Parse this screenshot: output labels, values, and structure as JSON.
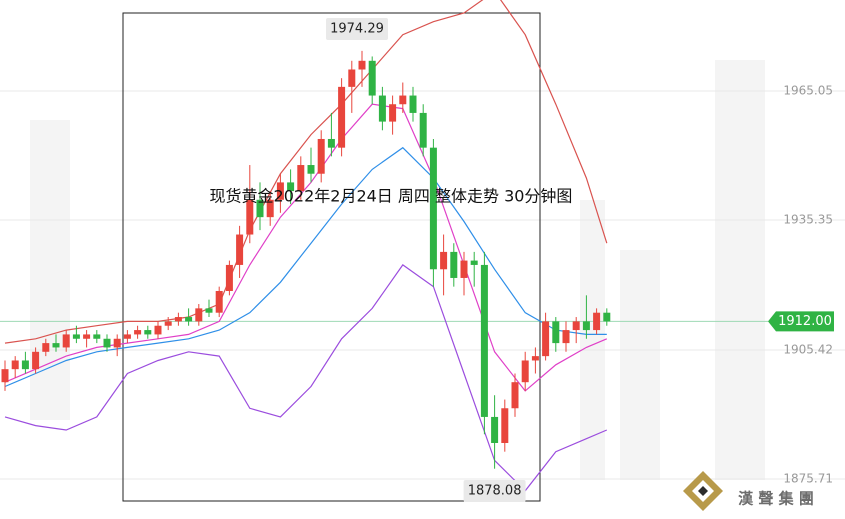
{
  "chart_data": {
    "type": "candlestick",
    "title": "现货黄金2022年2月24日 周四  整体走势 30分钟图",
    "ylim": [
      1866.5,
      1986.0
    ],
    "yticks": [
      1965.05,
      1935.35,
      1905.42,
      1875.71
    ],
    "grid": true,
    "up_color": "#e8453c",
    "down_color": "#2fb344",
    "last_price": {
      "value": 1912,
      "label": "1912.00"
    },
    "high_label": 1974.29,
    "low_label": 1878.08,
    "open": [
      1898,
      1901,
      1903,
      1901,
      1905,
      1907,
      1906,
      1909,
      1908,
      1909,
      1908,
      1906,
      1908,
      1909,
      1910,
      1909,
      1911,
      1912,
      1913,
      1912,
      1915,
      1914,
      1919,
      1925,
      1932,
      1940,
      1936,
      1940,
      1944,
      1942,
      1948,
      1946,
      1954,
      1952,
      1966,
      1970,
      1972,
      1964,
      1958,
      1962,
      1964,
      1960,
      1952,
      1924,
      1928,
      1922,
      1926,
      1925,
      1890,
      1884,
      1892,
      1898,
      1903,
      1904,
      1912,
      1907,
      1910,
      1912,
      1910,
      1914
    ],
    "high": [
      1903,
      1904,
      1905,
      1906,
      1908,
      1909,
      1910,
      1911,
      1910,
      1910,
      1909,
      1909,
      1910,
      1911,
      1911,
      1912,
      1913,
      1914,
      1915,
      1916,
      1917,
      1920,
      1926,
      1934,
      1948,
      1944,
      1942,
      1946,
      1947,
      1950,
      1952,
      1956,
      1960,
      1968,
      1972,
      1974.29,
      1973,
      1966,
      1964,
      1967,
      1966,
      1962,
      1954,
      1932,
      1930,
      1928,
      1928,
      1928,
      1895,
      1894,
      1900,
      1905,
      1906,
      1914,
      1913,
      1912,
      1913,
      1918,
      1915,
      1915
    ],
    "low": [
      1896,
      1899,
      1900,
      1900,
      1904,
      1905,
      1905,
      1907,
      1906,
      1907,
      1905,
      1904,
      1907,
      1908,
      1908,
      1908,
      1910,
      1911,
      1911,
      1911,
      1913,
      1913,
      1918,
      1922,
      1930,
      1933,
      1934,
      1937,
      1939,
      1940,
      1944,
      1944,
      1950,
      1950,
      1960,
      1966,
      1962,
      1956,
      1955,
      1960,
      1958,
      1950,
      1920,
      1918,
      1920,
      1918,
      1920,
      1886,
      1878.08,
      1882,
      1890,
      1896,
      1900,
      1903,
      1905,
      1905,
      1907,
      1908,
      1909,
      1911
    ],
    "close": [
      1901,
      1903,
      1901,
      1905,
      1907,
      1906,
      1909,
      1908,
      1909,
      1908,
      1906,
      1908,
      1909,
      1910,
      1909,
      1911,
      1912,
      1913,
      1912,
      1915,
      1914,
      1919,
      1925,
      1932,
      1940,
      1936,
      1940,
      1944,
      1942,
      1948,
      1946,
      1954,
      1952,
      1966,
      1970,
      1972,
      1964,
      1958,
      1962,
      1964,
      1960,
      1952,
      1924,
      1928,
      1922,
      1926,
      1925,
      1890,
      1884,
      1892,
      1898,
      1903,
      1904,
      1912,
      1907,
      1910,
      1912,
      1910,
      1914,
      1912
    ],
    "series": [
      {
        "color": "#d9534f",
        "x": [
          0,
          3,
          6,
          9,
          12,
          15,
          18,
          21,
          24,
          27,
          30,
          33,
          36,
          39,
          42,
          45,
          48,
          51,
          54,
          57,
          59
        ],
        "values": [
          1907,
          1908,
          1910,
          1911,
          1912,
          1912,
          1913,
          1916,
          1933,
          1946,
          1955,
          1962,
          1970,
          1978,
          1981,
          1983,
          1988,
          1978,
          1962,
          1945,
          1930
        ]
      },
      {
        "color": "#e040c8",
        "x": [
          0,
          3,
          6,
          9,
          12,
          15,
          18,
          21,
          24,
          27,
          30,
          33,
          36,
          39,
          42,
          45,
          48,
          51,
          54,
          57,
          59
        ],
        "values": [
          1898,
          1901,
          1904,
          1906,
          1907,
          1908,
          1909,
          1912,
          1925,
          1936,
          1944,
          1954,
          1962,
          1961,
          1945,
          1925,
          1905,
          1896,
          1902,
          1906,
          1908
        ]
      },
      {
        "color": "#2f8fe8",
        "x": [
          0,
          3,
          6,
          9,
          12,
          15,
          18,
          21,
          24,
          27,
          30,
          33,
          36,
          39,
          42,
          45,
          48,
          51,
          54,
          57,
          59
        ],
        "values": [
          1897,
          1900,
          1903,
          1905,
          1906,
          1907,
          1908,
          1910,
          1914,
          1921,
          1930,
          1939,
          1947,
          1952,
          1945,
          1935,
          1924,
          1914,
          1910,
          1909,
          1909
        ]
      },
      {
        "color": "#9b4dde",
        "x": [
          0,
          3,
          6,
          9,
          12,
          15,
          18,
          21,
          24,
          27,
          30,
          33,
          36,
          39,
          42,
          45,
          48,
          51,
          54,
          57,
          59
        ],
        "values": [
          1890,
          1888,
          1887,
          1890,
          1900,
          1903,
          1905,
          1904,
          1892,
          1890,
          1897,
          1908,
          1915,
          1925,
          1920,
          1900,
          1880,
          1873,
          1882,
          1885,
          1887
        ]
      }
    ],
    "watermark": "漢 聲 集 團"
  }
}
